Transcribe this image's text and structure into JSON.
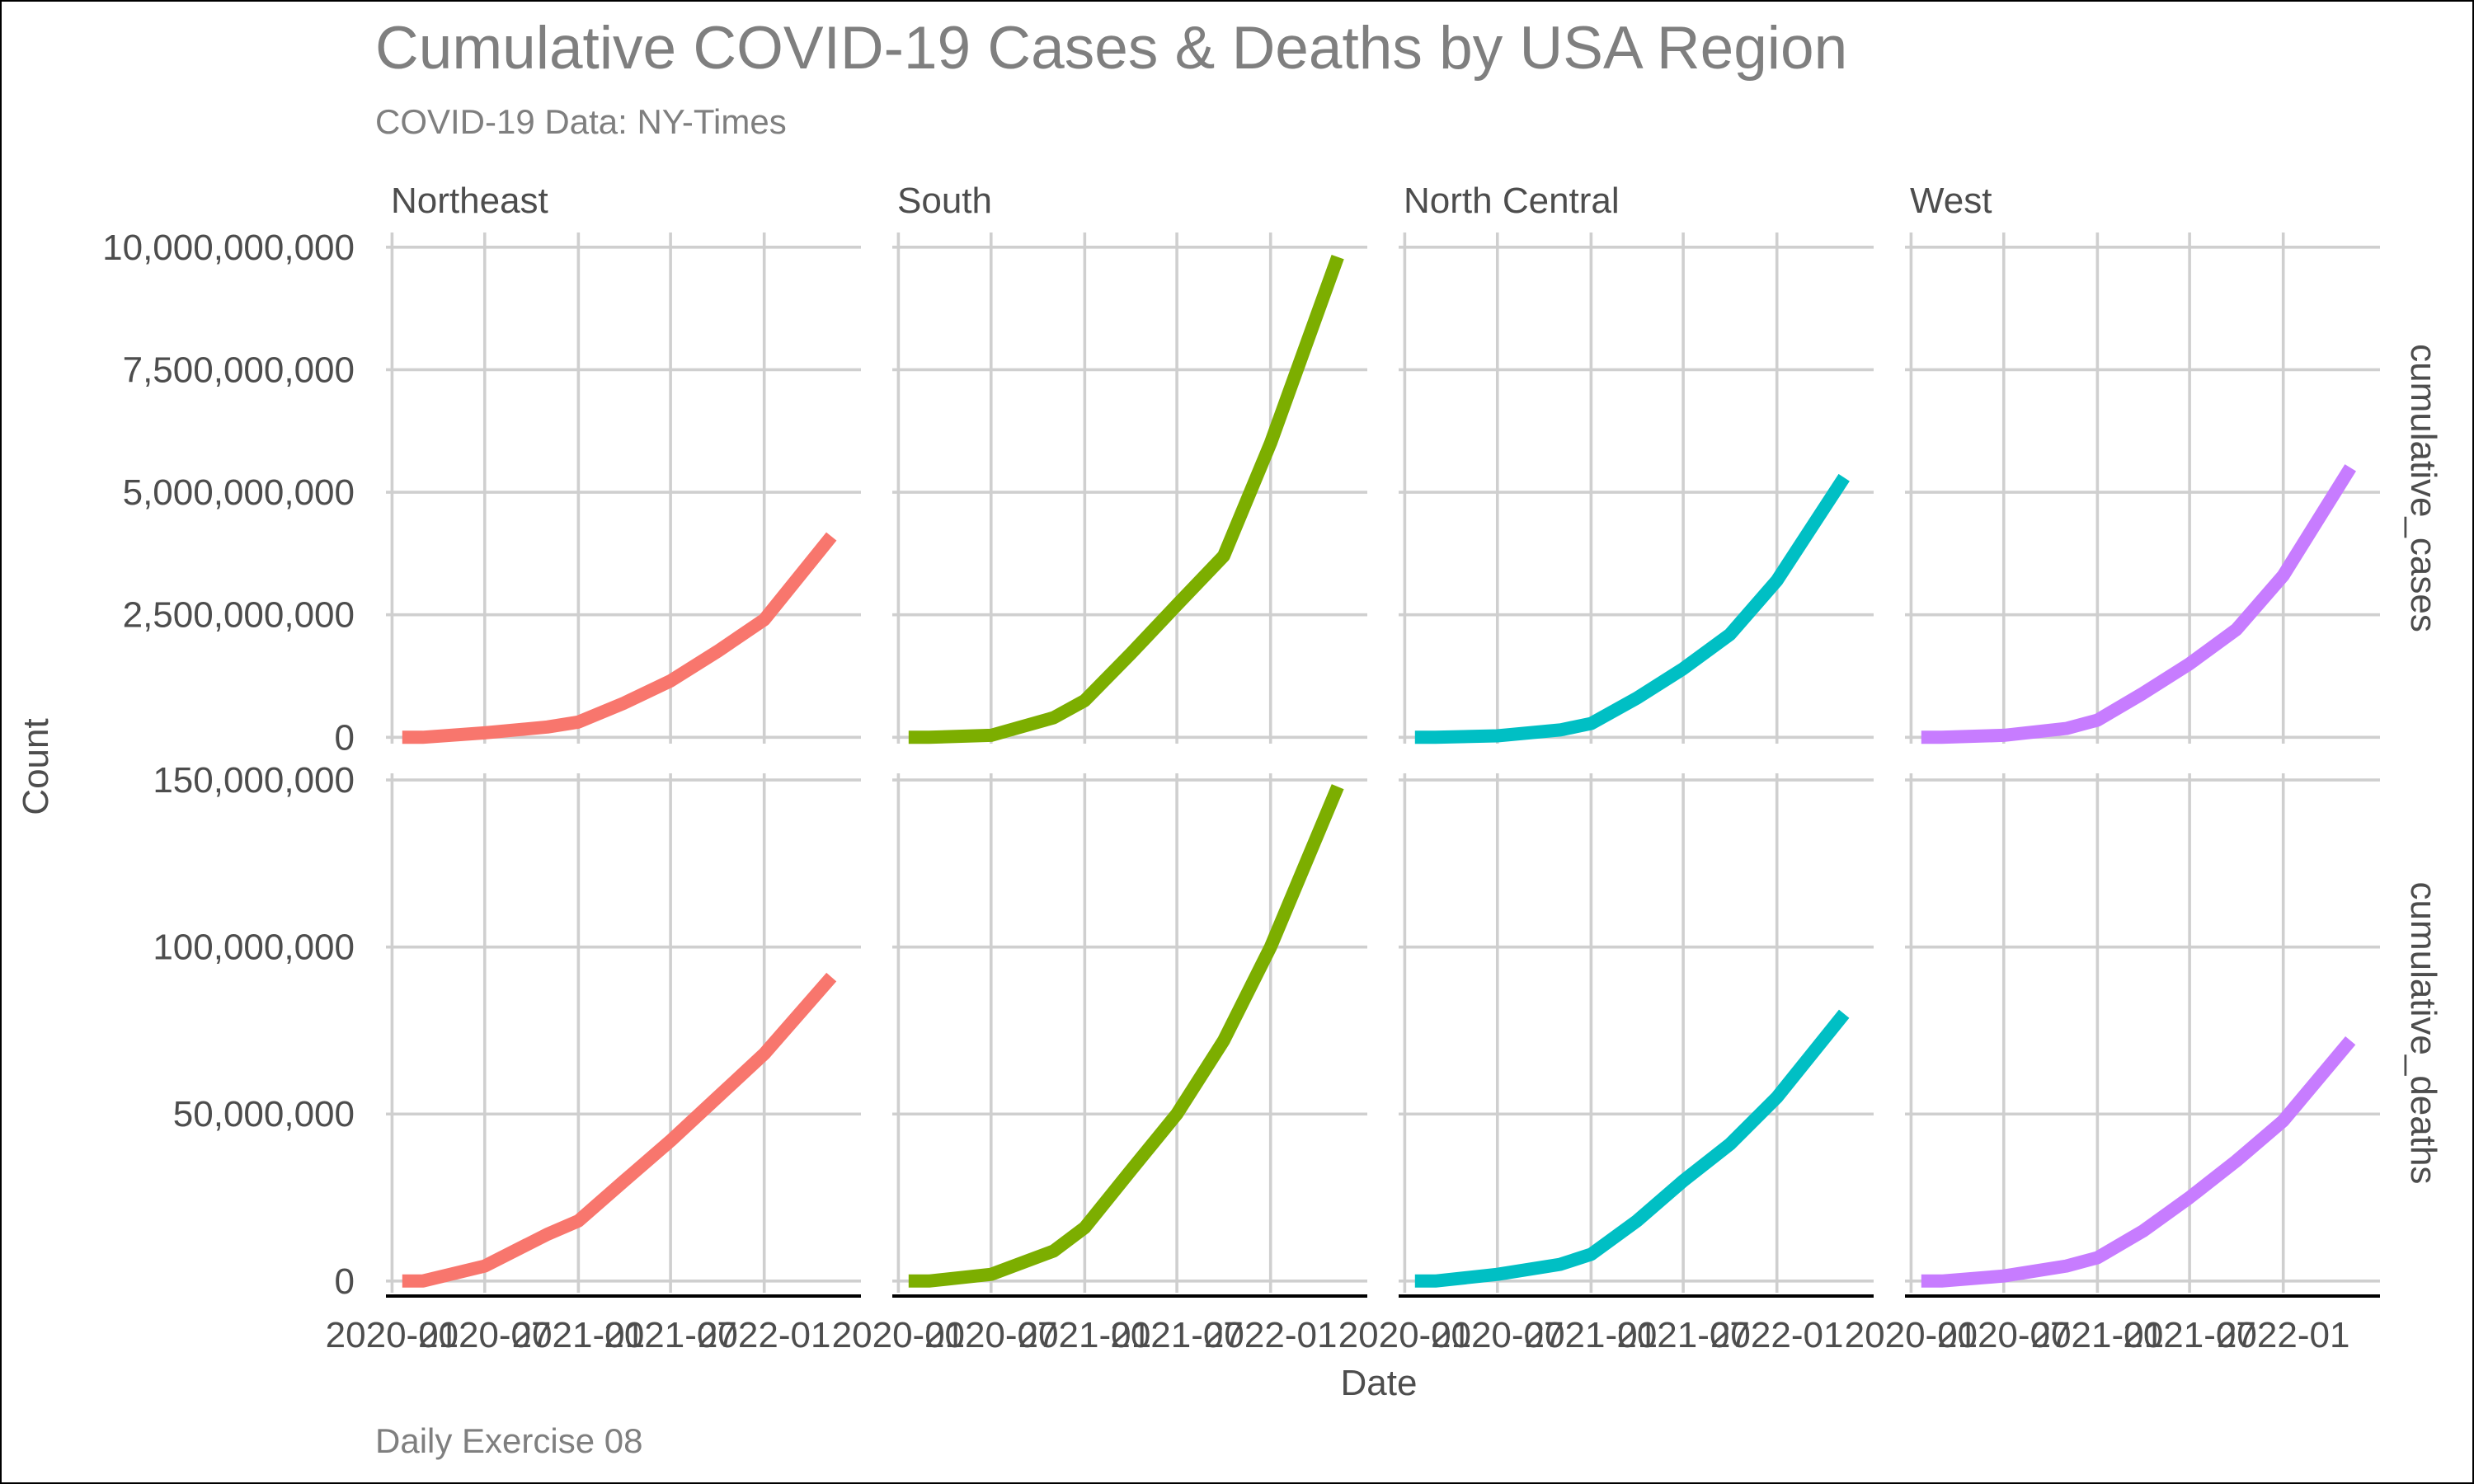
{
  "chart_data": {
    "type": "line",
    "title": "Cumulative COVID-19 Cases & Deaths by USA Region",
    "subtitle": "COVID-19 Data: NY-Times",
    "caption": "Daily Exercise 08",
    "xlabel": "Date",
    "ylabel": "Count",
    "facet_columns": [
      "Northeast",
      "South",
      "North Central",
      "West"
    ],
    "facet_rows": [
      "cumulative_cases",
      "cumulative_deaths"
    ],
    "x_ticks": [
      "2020-01",
      "2020-07",
      "2021-01",
      "2021-07",
      "2022-01"
    ],
    "x_range": [
      "2019-12-20",
      "2022-07-10"
    ],
    "y_scales": {
      "free_y_by_row": true,
      "rows": [
        {
          "ylim": [
            -130000000,
            10300000000
          ],
          "ticks": [
            0,
            2500000000,
            5000000000,
            7500000000,
            10000000000
          ],
          "tick_labels": [
            "0",
            "2,500,000,000",
            "5,000,000,000",
            "7,500,000,000",
            "10,000,000,000"
          ]
        },
        {
          "ylim": [
            -3500000,
            152000000
          ],
          "ticks": [
            0,
            50000000,
            100000000,
            150000000
          ],
          "tick_labels": [
            "0",
            "50,000,000",
            "100,000,000",
            "150,000,000"
          ]
        }
      ]
    },
    "grid": true,
    "legend": "none",
    "x": [
      "2020-01-21",
      "2020-03-01",
      "2020-07-01",
      "2020-11-01",
      "2021-01-01",
      "2021-04-01",
      "2021-07-01",
      "2021-10-01",
      "2022-01-01",
      "2022-05-13"
    ],
    "series": [
      {
        "region": "Northeast",
        "color": "#F8766D",
        "cumulative_cases": [
          0,
          0,
          90000000,
          210000000,
          310000000,
          700000000,
          1150000000,
          1750000000,
          2400000000,
          4100000000
        ],
        "cumulative_deaths": [
          0,
          0,
          4500000,
          14000000,
          18000000,
          30000000,
          42000000,
          55000000,
          68000000,
          91000000
        ]
      },
      {
        "region": "South",
        "color": "#7CAE00",
        "cumulative_cases": [
          0,
          0,
          40000000,
          400000000,
          750000000,
          1700000000,
          2700000000,
          3700000000,
          6000000000,
          9800000000
        ],
        "cumulative_deaths": [
          0,
          0,
          2000000,
          9000000,
          16000000,
          33000000,
          50000000,
          72000000,
          100000000,
          148000000
        ]
      },
      {
        "region": "North Central",
        "color": "#00BFC4",
        "cumulative_cases": [
          0,
          0,
          30000000,
          150000000,
          280000000,
          800000000,
          1400000000,
          2100000000,
          3200000000,
          5300000000
        ],
        "cumulative_deaths": [
          0,
          0,
          2000000,
          5000000,
          8000000,
          18000000,
          30000000,
          41000000,
          55000000,
          80000000
        ]
      },
      {
        "region": "West",
        "color": "#C77CFF",
        "cumulative_cases": [
          0,
          0,
          40000000,
          180000000,
          350000000,
          900000000,
          1500000000,
          2200000000,
          3300000000,
          5500000000
        ],
        "cumulative_deaths": [
          0,
          0,
          1500000,
          4500000,
          7000000,
          15000000,
          25000000,
          36000000,
          48000000,
          72000000
        ]
      }
    ]
  }
}
